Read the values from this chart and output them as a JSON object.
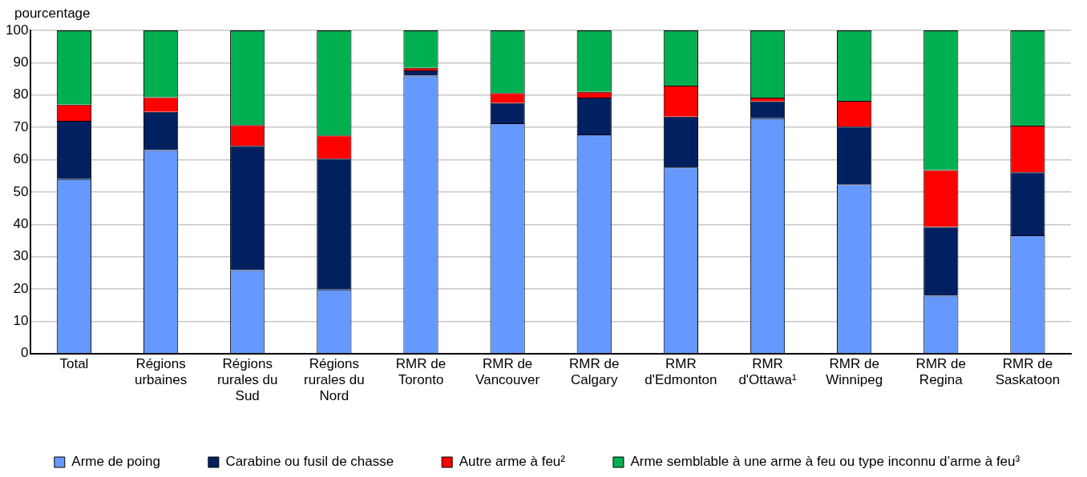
{
  "chart_data": {
    "type": "bar",
    "stacked": true,
    "ylabel": "pourcentage",
    "categories": [
      "Total",
      "Régions urbaines",
      "Régions rurales du Sud",
      "Régions rurales du Nord",
      "RMR de Toronto",
      "RMR de Vancouver",
      "RMR de Calgary",
      "RMR d'Edmonton",
      "RMR d'Ottawa¹",
      "RMR de Winnipeg",
      "RMR de Regina",
      "RMR de Saskatoon"
    ],
    "series": [
      {
        "name": "Arme de poing",
        "color": "#6699ff",
        "values": [
          54,
          63,
          25.8,
          19.8,
          86,
          71.3,
          67.8,
          57.6,
          72.8,
          52.4,
          17.9,
          36.6
        ]
      },
      {
        "name": "Carabine ou fusil de chasse",
        "color": "#002060",
        "values": [
          18,
          11.8,
          38.5,
          40.5,
          1.6,
          6.2,
          11.4,
          15.7,
          5.2,
          17.8,
          21.3,
          19.5
        ]
      },
      {
        "name": "Autre arme à feu²",
        "color": "#ff0000",
        "values": [
          5,
          4.5,
          6.4,
          7.2,
          0.8,
          3.1,
          1.8,
          9.6,
          1.2,
          8,
          17.6,
          14.4
        ]
      },
      {
        "name": "Arme semblable à une arme à feu ou type inconnu d’arme à feu³",
        "color": "#00b050",
        "values": [
          23,
          20.7,
          29.3,
          32.5,
          11.6,
          19.4,
          19,
          17.1,
          20.8,
          21.8,
          43.2,
          29.5
        ]
      }
    ],
    "ylim": [
      0,
      100
    ],
    "yticks": [
      0,
      10,
      20,
      30,
      40,
      50,
      60,
      70,
      80,
      90,
      100
    ],
    "grid": "y",
    "legend": "bottom"
  }
}
